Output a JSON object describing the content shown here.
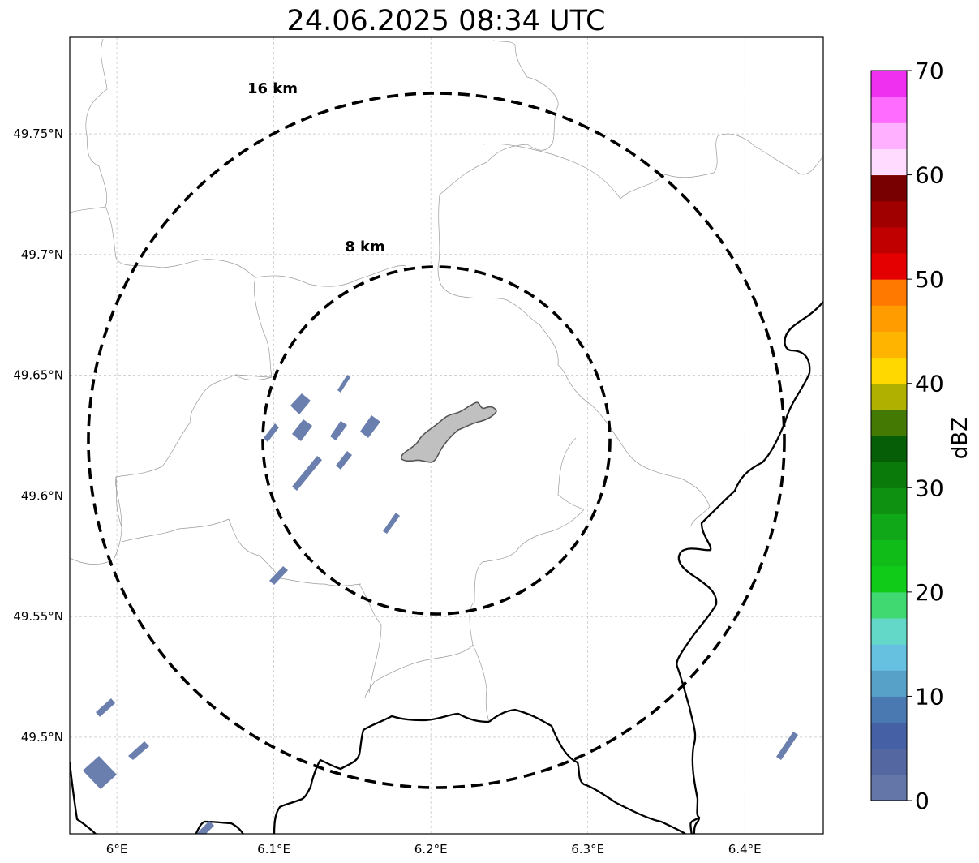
{
  "title": "24.06.2025 08:34 UTC",
  "map": {
    "lon_range": [
      5.97,
      6.45
    ],
    "lat_range": [
      49.46,
      49.79
    ],
    "grid": true,
    "x_ticks": [
      {
        "value": 6.0,
        "label": "6°E"
      },
      {
        "value": 6.1,
        "label": "6.1°E"
      },
      {
        "value": 6.2,
        "label": "6.2°E"
      },
      {
        "value": 6.3,
        "label": "6.3°E"
      },
      {
        "value": 6.4,
        "label": "6.4°E"
      }
    ],
    "y_ticks": [
      {
        "value": 49.5,
        "label": "49.5°N"
      },
      {
        "value": 49.55,
        "label": "49.55°N"
      },
      {
        "value": 49.6,
        "label": "49.6°N"
      },
      {
        "value": 49.65,
        "label": "49.65°N"
      },
      {
        "value": 49.7,
        "label": "49.7°N"
      },
      {
        "value": 49.75,
        "label": "49.75°N"
      }
    ],
    "range_rings": [
      {
        "label": "16 km",
        "radius_km": 16
      },
      {
        "label": "8 km",
        "radius_km": 8
      }
    ],
    "center": {
      "lon": 6.203,
      "lat": 49.623
    },
    "colors": {
      "ring": "#000000",
      "echo": "#6a7fae",
      "city_fill": "#c0c0c0",
      "border": "#000000",
      "admin": "#9a9a9a"
    }
  },
  "colorbar": {
    "label": "dBZ",
    "range": [
      0,
      70
    ],
    "tick_labels": [
      "0",
      "10",
      "20",
      "30",
      "40",
      "50",
      "60",
      "70"
    ],
    "colors": [
      "#6476a8",
      "#5467a0",
      "#4560a4",
      "#4a78b0",
      "#57a0c8",
      "#66c0e0",
      "#64d8c8",
      "#40d870",
      "#10cc18",
      "#10bc18",
      "#10a818",
      "#0e9010",
      "#0a7a0a",
      "#065e06",
      "#447a04",
      "#b0b000",
      "#ffd800",
      "#ffb400",
      "#ff9c00",
      "#ff7800",
      "#e40000",
      "#c00000",
      "#a00000",
      "#780000",
      "#ffdcff",
      "#ffb0ff",
      "#ff6cff",
      "#f030f0"
    ]
  }
}
